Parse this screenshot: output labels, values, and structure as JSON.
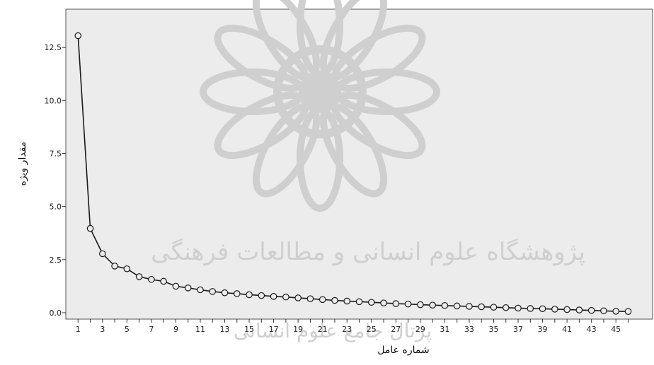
{
  "chart_data": {
    "type": "line",
    "xlabel": "شماره عامل",
    "ylabel": "مقدار ویژه",
    "xlim": [
      0,
      48
    ],
    "ylim": [
      -0.3,
      14.3
    ],
    "x_ticks": [
      1,
      3,
      5,
      7,
      9,
      11,
      13,
      15,
      17,
      19,
      21,
      23,
      25,
      27,
      29,
      31,
      33,
      35,
      37,
      39,
      41,
      43,
      45
    ],
    "y_ticks": [
      "0.0",
      "2.5",
      "5.0",
      "7.5",
      "10.0",
      "12.5"
    ],
    "x": [
      1,
      2,
      3,
      4,
      5,
      6,
      7,
      8,
      9,
      10,
      11,
      12,
      13,
      14,
      15,
      16,
      17,
      18,
      19,
      20,
      21,
      22,
      23,
      24,
      25,
      26,
      27,
      28,
      29,
      30,
      31,
      32,
      33,
      34,
      35,
      36,
      37,
      38,
      39,
      40,
      41,
      42,
      43,
      44,
      45,
      46
    ],
    "values": [
      13.05,
      3.97,
      2.78,
      2.2,
      2.07,
      1.7,
      1.57,
      1.48,
      1.25,
      1.17,
      1.08,
      1.0,
      0.94,
      0.9,
      0.85,
      0.81,
      0.77,
      0.74,
      0.7,
      0.66,
      0.62,
      0.58,
      0.55,
      0.52,
      0.49,
      0.46,
      0.43,
      0.41,
      0.38,
      0.36,
      0.34,
      0.32,
      0.3,
      0.28,
      0.26,
      0.24,
      0.22,
      0.2,
      0.19,
      0.17,
      0.15,
      0.13,
      0.11,
      0.09,
      0.07,
      0.06
    ],
    "grid": false,
    "marker": "circle-open",
    "line_color": "#1a1a1a",
    "plot_background": "#ececec"
  },
  "watermark": {
    "line1": "پژوهشگاه علوم انسانی و مطالعات فرهنگی",
    "line2": "پرتال جامع علوم انسانی",
    "color": "#cfcfcf"
  }
}
